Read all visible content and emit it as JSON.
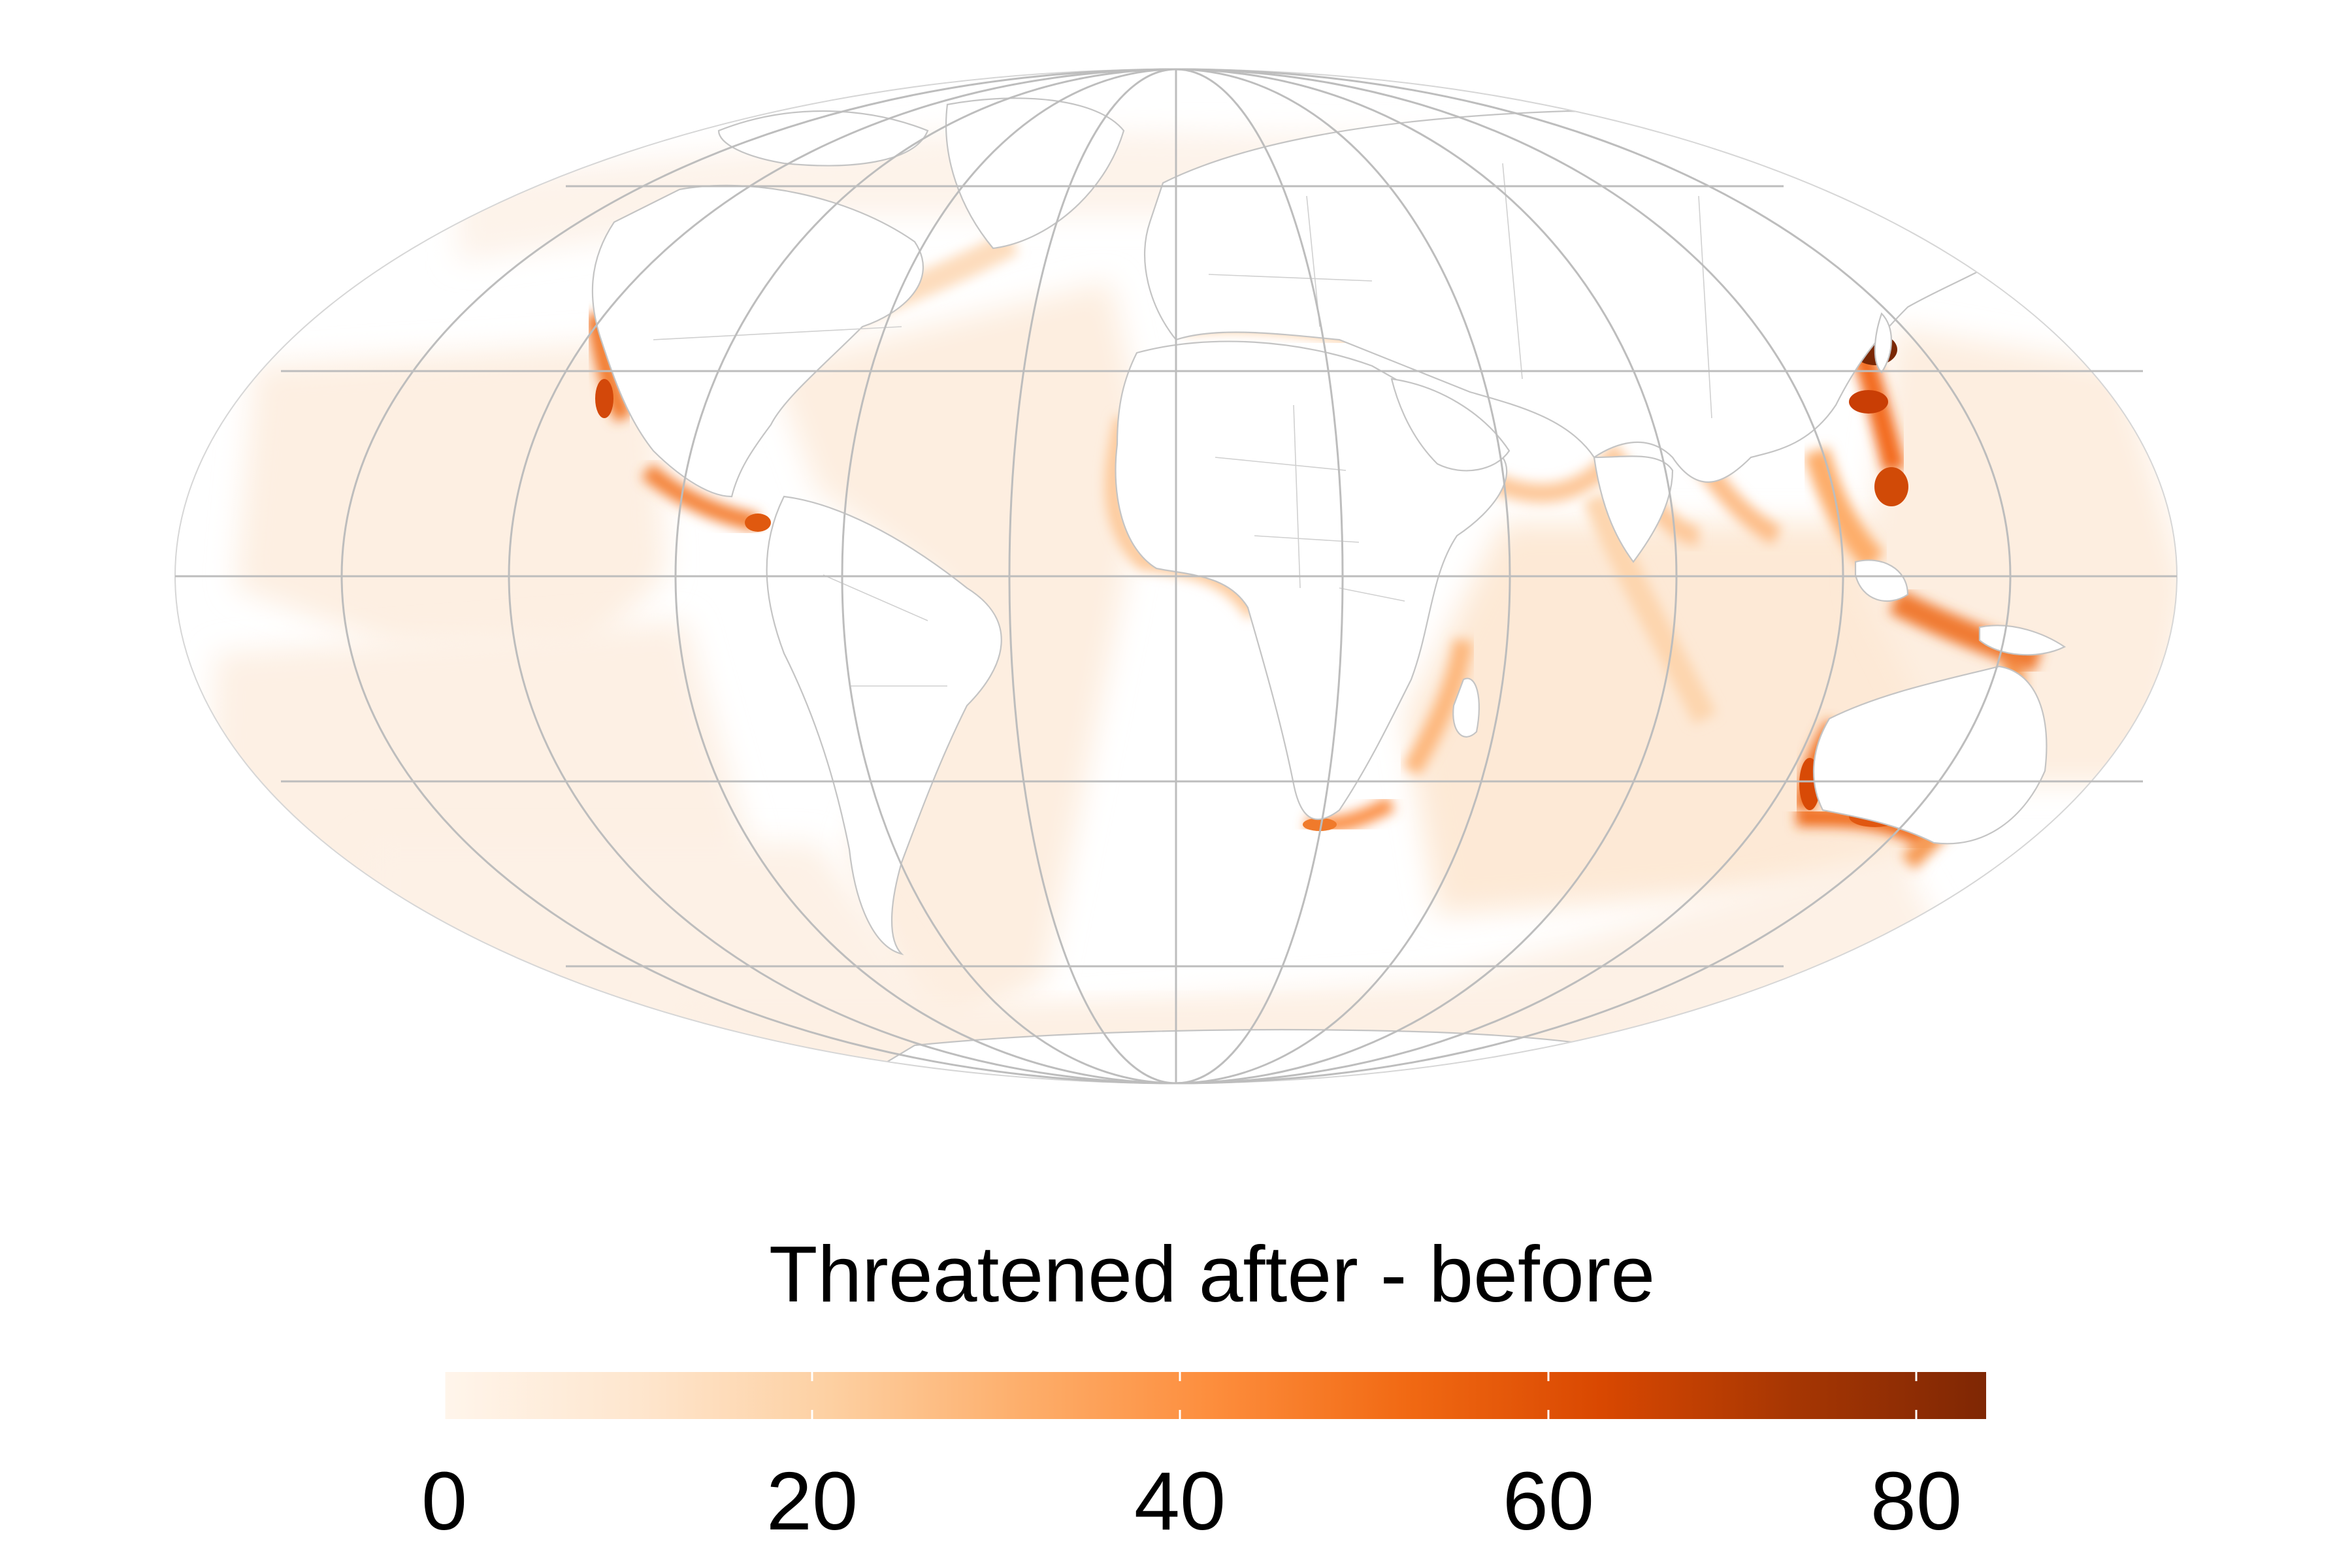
{
  "map": {
    "projection": "Mollweide (world, ocean raster)",
    "variable": "threatened_after_minus_before",
    "colors": {
      "ocean_low": "#fdeee0",
      "ocean_mid": "#fdd0a2",
      "coast_high": "#e5561a",
      "peak": "#8a2d03",
      "land": "#ffffff",
      "graticule": "#bdbdbd",
      "borders": "#c4c4c4"
    },
    "hotspots": [
      "Japan / East China Sea",
      "Philippines",
      "Indonesia",
      "Western Australia",
      "Southern Australia",
      "California coast",
      "Central America Pacific coast",
      "West Africa coast",
      "South Africa",
      "Mozambique Channel",
      "Arabian Sea / India"
    ]
  },
  "legend": {
    "title": "Threatened after - before",
    "range": [
      0,
      83
    ],
    "ticks": [
      {
        "value": 0,
        "label": "0"
      },
      {
        "value": 20,
        "label": "20"
      },
      {
        "value": 40,
        "label": "40"
      },
      {
        "value": 60,
        "label": "60"
      },
      {
        "value": 80,
        "label": "80"
      }
    ],
    "gradient": [
      "#fff5eb",
      "#fee6ce",
      "#fdd0a2",
      "#fdae6b",
      "#fd8d3c",
      "#f16913",
      "#d94801",
      "#a63603",
      "#7f2704"
    ]
  }
}
